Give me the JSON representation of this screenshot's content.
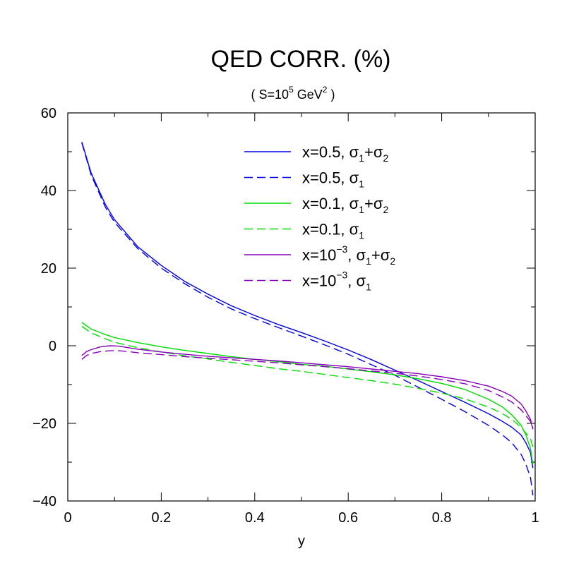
{
  "chart_data": {
    "type": "line",
    "title": "QED CORR. (%)",
    "subtitle": {
      "open": "( S=10",
      "exp": "5",
      "mid": " GeV",
      "exp2": "2",
      "close": " )"
    },
    "xlabel": "y",
    "ylabel": "",
    "xlim": [
      0,
      1
    ],
    "ylim": [
      -40,
      60
    ],
    "x_ticks": [
      "0",
      "0.2",
      "0.4",
      "0.6",
      "0.8",
      "1"
    ],
    "y_ticks": [
      "60",
      "40",
      "20",
      "0",
      "−20",
      "−40"
    ],
    "grid": false,
    "legend_position": "top-right",
    "series": [
      {
        "name": "x=0.5,  σ₁+σ₂",
        "label": {
          "main": "x=0.5,  ",
          "pre_exp": "",
          "exp": "",
          "rest": "",
          "sigma": "σ",
          "sub1": "1",
          "plus": "+σ",
          "sub2": "2"
        },
        "color": "#0000e6",
        "dash": "solid",
        "x": [
          0.03,
          0.05,
          0.08,
          0.1,
          0.15,
          0.2,
          0.25,
          0.3,
          0.35,
          0.4,
          0.45,
          0.5,
          0.55,
          0.6,
          0.65,
          0.7,
          0.75,
          0.8,
          0.85,
          0.9,
          0.93,
          0.95,
          0.97,
          0.98,
          0.99,
          0.995
        ],
        "y": [
          52.5,
          44.5,
          36.5,
          32.5,
          25.5,
          20.7,
          16.6,
          13.3,
          10.3,
          7.8,
          5.5,
          3.4,
          1.2,
          -1.1,
          -3.6,
          -6.3,
          -9.0,
          -11.8,
          -14.6,
          -17.5,
          -19.5,
          -21.0,
          -23.0,
          -25.0,
          -27.5,
          -31.5
        ]
      },
      {
        "name": "x=0.5, σ₁",
        "label": {
          "main": "x=0.5, ",
          "pre_exp": "",
          "exp": "",
          "rest": "",
          "sigma": "σ",
          "sub1": "1",
          "plus": "",
          "sub2": ""
        },
        "color": "#0000e6",
        "dash": "dashed",
        "x": [
          0.03,
          0.05,
          0.08,
          0.1,
          0.15,
          0.2,
          0.25,
          0.3,
          0.35,
          0.4,
          0.45,
          0.5,
          0.55,
          0.6,
          0.65,
          0.7,
          0.75,
          0.8,
          0.85,
          0.9,
          0.93,
          0.95,
          0.97,
          0.98,
          0.99,
          0.995
        ],
        "y": [
          52.3,
          44.0,
          35.8,
          31.8,
          25.0,
          20.0,
          16.0,
          12.5,
          9.5,
          7.0,
          4.7,
          2.5,
          0.2,
          -2.2,
          -4.9,
          -7.6,
          -10.7,
          -13.8,
          -17.0,
          -20.5,
          -23.0,
          -25.0,
          -28.0,
          -30.5,
          -34.0,
          -38.5
        ]
      },
      {
        "name": "x=0.1,  σ₁+σ₂",
        "label": {
          "main": "x=0.1,  ",
          "pre_exp": "",
          "exp": "",
          "rest": "",
          "sigma": "σ",
          "sub1": "1",
          "plus": "+σ",
          "sub2": "2"
        },
        "color": "#00dd00",
        "dash": "solid",
        "x": [
          0.03,
          0.05,
          0.08,
          0.1,
          0.15,
          0.2,
          0.25,
          0.3,
          0.35,
          0.4,
          0.45,
          0.5,
          0.55,
          0.6,
          0.65,
          0.7,
          0.75,
          0.8,
          0.85,
          0.9,
          0.93,
          0.95,
          0.97,
          0.98,
          0.99,
          0.995
        ],
        "y": [
          6.0,
          4.3,
          2.9,
          2.1,
          0.8,
          -0.3,
          -1.2,
          -2.0,
          -2.8,
          -3.5,
          -4.1,
          -4.8,
          -5.3,
          -6.0,
          -6.7,
          -7.5,
          -8.5,
          -9.7,
          -11.3,
          -13.8,
          -15.8,
          -17.8,
          -20.5,
          -23.0,
          -26.5,
          -30.5
        ]
      },
      {
        "name": "x=0.1, σ₁",
        "label": {
          "main": "x=0.1, ",
          "pre_exp": "",
          "exp": "",
          "rest": "",
          "sigma": "σ",
          "sub1": "1",
          "plus": "",
          "sub2": ""
        },
        "color": "#00dd00",
        "dash": "dashed",
        "x": [
          0.03,
          0.05,
          0.08,
          0.1,
          0.15,
          0.2,
          0.25,
          0.3,
          0.35,
          0.4,
          0.45,
          0.5,
          0.55,
          0.6,
          0.65,
          0.7,
          0.75,
          0.8,
          0.85,
          0.9,
          0.93,
          0.95,
          0.97,
          0.98,
          0.99,
          0.995
        ],
        "y": [
          5.0,
          3.3,
          1.8,
          0.9,
          -0.5,
          -1.6,
          -2.6,
          -3.4,
          -4.3,
          -5.1,
          -5.9,
          -6.6,
          -7.4,
          -8.2,
          -9.0,
          -9.9,
          -11.0,
          -12.2,
          -13.7,
          -15.8,
          -17.5,
          -19.0,
          -21.0,
          -22.5,
          -24.0,
          -26.0
        ]
      },
      {
        "name": "x=10⁻³, σ₁+σ₂",
        "label": {
          "main": "",
          "pre_exp": "x=10",
          "exp": "−3",
          "rest": ", ",
          "sigma": "σ",
          "sub1": "1",
          "plus": "+σ",
          "sub2": "2"
        },
        "color": "#8800bb",
        "dash": "solid",
        "x": [
          0.03,
          0.04,
          0.05,
          0.07,
          0.09,
          0.11,
          0.13,
          0.15,
          0.2,
          0.25,
          0.3,
          0.35,
          0.4,
          0.45,
          0.5,
          0.55,
          0.6,
          0.65,
          0.7,
          0.75,
          0.8,
          0.85,
          0.9,
          0.93,
          0.95,
          0.97,
          0.98,
          0.99,
          0.995
        ],
        "y": [
          -2.5,
          -1.5,
          -1.0,
          -0.3,
          0.0,
          -0.1,
          -0.5,
          -0.9,
          -1.6,
          -2.2,
          -2.7,
          -3.1,
          -3.5,
          -3.9,
          -4.4,
          -4.9,
          -5.4,
          -6.0,
          -6.6,
          -7.2,
          -8.0,
          -9.0,
          -10.4,
          -11.8,
          -13.0,
          -15.0,
          -16.8,
          -19.0,
          -21.5
        ]
      },
      {
        "name": "x=10⁻³, σ₁",
        "label": {
          "main": "",
          "pre_exp": "x=10",
          "exp": "−3",
          "rest": ", ",
          "sigma": "σ",
          "sub1": "1",
          "plus": "",
          "sub2": ""
        },
        "color": "#8800bb",
        "dash": "dashed",
        "x": [
          0.03,
          0.04,
          0.05,
          0.07,
          0.09,
          0.11,
          0.13,
          0.15,
          0.2,
          0.25,
          0.3,
          0.35,
          0.4,
          0.45,
          0.5,
          0.55,
          0.6,
          0.65,
          0.7,
          0.75,
          0.8,
          0.85,
          0.9,
          0.93,
          0.95,
          0.97,
          0.98,
          0.99,
          0.995
        ],
        "y": [
          -3.5,
          -2.5,
          -2.0,
          -1.5,
          -1.3,
          -1.3,
          -1.5,
          -1.8,
          -2.3,
          -2.8,
          -3.2,
          -3.6,
          -4.0,
          -4.4,
          -4.9,
          -5.4,
          -5.9,
          -6.5,
          -7.1,
          -7.8,
          -8.7,
          -9.8,
          -11.5,
          -13.2,
          -14.5,
          -16.5,
          -18.0,
          -19.5,
          -21.0
        ]
      }
    ]
  }
}
